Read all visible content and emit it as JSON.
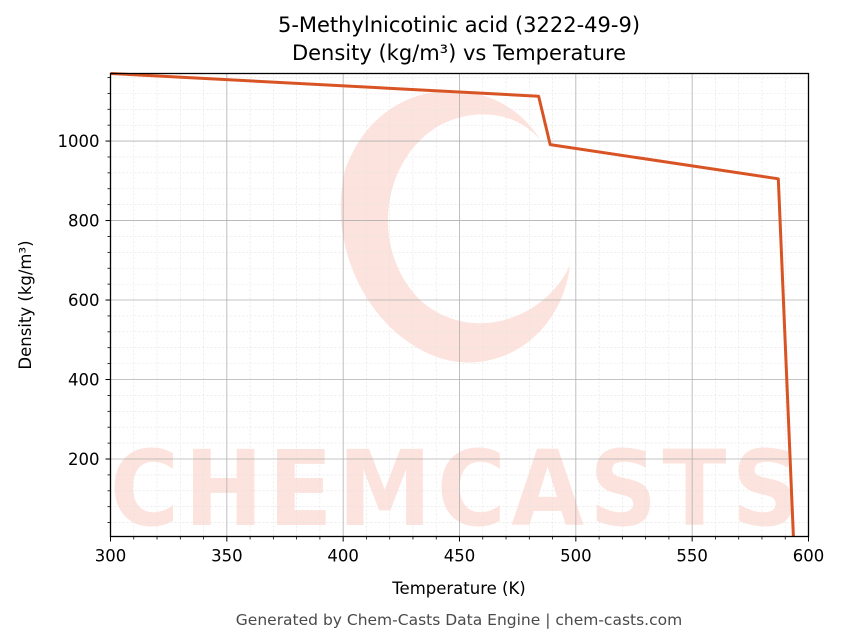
{
  "chart_data": {
    "type": "line",
    "title": "5-Methylnicotinic acid (3222-49-9)",
    "subtitle": "Density (kg/m³) vs Temperature",
    "xlabel": "Temperature (K)",
    "ylabel": "Density (kg/m³)",
    "xlim": [
      300,
      600
    ],
    "ylim": [
      5,
      1170
    ],
    "xticks": [
      300,
      350,
      400,
      450,
      500,
      550,
      600
    ],
    "yticks": [
      200,
      400,
      600,
      800,
      1000
    ],
    "grid": true,
    "series": [
      {
        "color": "#d95425",
        "x": [
          300,
          484,
          489,
          587,
          593.5
        ],
        "y": [
          1170,
          1113,
          991,
          905,
          5
        ]
      }
    ]
  },
  "watermark": {
    "text": "CHEMCASTS",
    "color": "#fde3dd"
  },
  "footer": {
    "text": "Generated by Chem-Casts Data Engine | chem-casts.com"
  }
}
